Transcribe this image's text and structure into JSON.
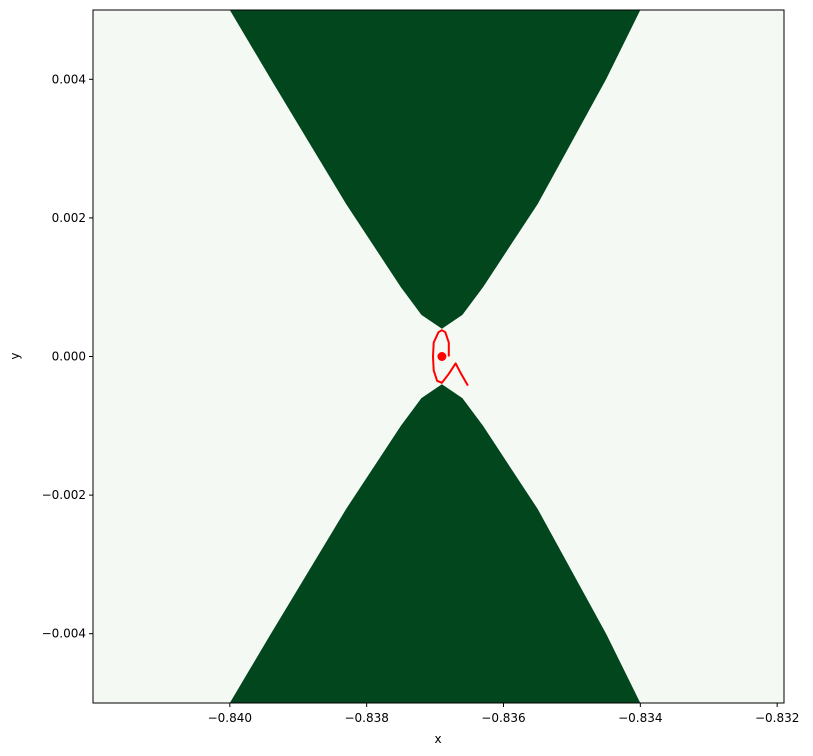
{
  "chart_data": {
    "type": "contour",
    "xlabel": "x",
    "ylabel": "y",
    "xlim": [
      -0.842,
      -0.8319
    ],
    "ylim": [
      -0.005,
      0.005
    ],
    "xticks": [
      -0.84,
      -0.838,
      -0.836,
      -0.834,
      -0.832
    ],
    "xtick_labels": [
      "−0.840",
      "−0.838",
      "−0.836",
      "−0.834",
      "−0.832"
    ],
    "yticks": [
      0.004,
      0.002,
      0.0,
      -0.002,
      -0.004
    ],
    "ytick_labels": [
      "0.004",
      "0.002",
      "0.000",
      "−0.002",
      "−0.004"
    ],
    "colors": {
      "background_region": "#f4faf3",
      "filled_region": "#02461e",
      "trajectory": "#ff0000",
      "point": "#ff0000"
    },
    "regions": [
      {
        "name": "upper",
        "points": [
          [
            -0.84,
            0.005
          ],
          [
            -0.8394,
            0.004
          ],
          [
            -0.8383,
            0.0022
          ],
          [
            -0.8375,
            0.001
          ],
          [
            -0.8372,
            0.0006
          ],
          [
            -0.8369,
            0.0004
          ],
          [
            -0.8366,
            0.0006
          ],
          [
            -0.8363,
            0.001
          ],
          [
            -0.8355,
            0.0022
          ],
          [
            -0.8345,
            0.004
          ],
          [
            -0.834,
            0.005
          ]
        ]
      },
      {
        "name": "lower",
        "points": [
          [
            -0.84,
            -0.005
          ],
          [
            -0.8394,
            -0.004
          ],
          [
            -0.8383,
            -0.0022
          ],
          [
            -0.8375,
            -0.001
          ],
          [
            -0.8372,
            -0.0006
          ],
          [
            -0.8369,
            -0.0004
          ],
          [
            -0.8366,
            -0.0006
          ],
          [
            -0.8363,
            -0.001
          ],
          [
            -0.8355,
            -0.0022
          ],
          [
            -0.8345,
            -0.004
          ],
          [
            -0.834,
            -0.005
          ]
        ]
      }
    ],
    "trajectory": [
      [
        -0.8368,
        0.0
      ],
      [
        -0.8368,
        0.0002
      ],
      [
        -0.83685,
        0.00035
      ],
      [
        -0.8369,
        0.00038
      ],
      [
        -0.83695,
        0.00035
      ],
      [
        -0.83702,
        0.0002
      ],
      [
        -0.83703,
        0.0
      ],
      [
        -0.83702,
        -0.0002
      ],
      [
        -0.83697,
        -0.00035
      ],
      [
        -0.8369,
        -0.00038
      ],
      [
        -0.8368,
        -0.00025
      ],
      [
        -0.8367,
        -0.0001
      ],
      [
        -0.83662,
        -0.00025
      ],
      [
        -0.83652,
        -0.00042
      ]
    ],
    "point": [
      -0.8369,
      0.0
    ]
  }
}
